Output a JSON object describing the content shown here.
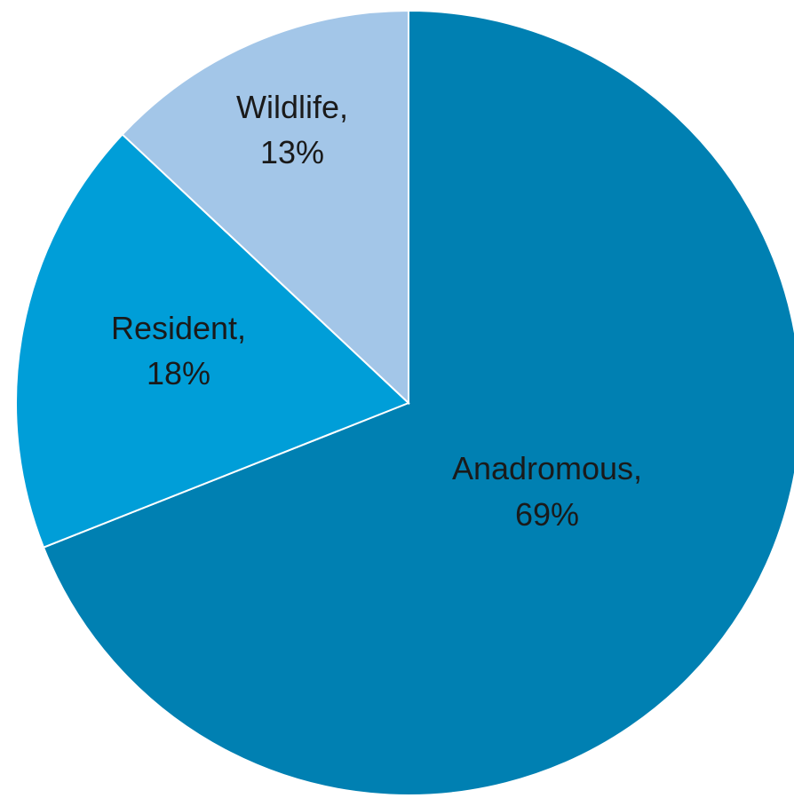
{
  "chart_data": {
    "type": "pie",
    "title": "",
    "slices": [
      {
        "label": "Anadromous",
        "value": 69,
        "display": "69%",
        "color": "#0080b2"
      },
      {
        "label": "Resident",
        "value": 18,
        "display": "18%",
        "color": "#009ed8"
      },
      {
        "label": "Wildlife",
        "value": 13,
        "display": "13%",
        "color": "#a3c6e8"
      }
    ],
    "start": "12 o'clock",
    "direction": "clockwise",
    "labels": "inside slices, category name and percent",
    "legend": "none"
  }
}
